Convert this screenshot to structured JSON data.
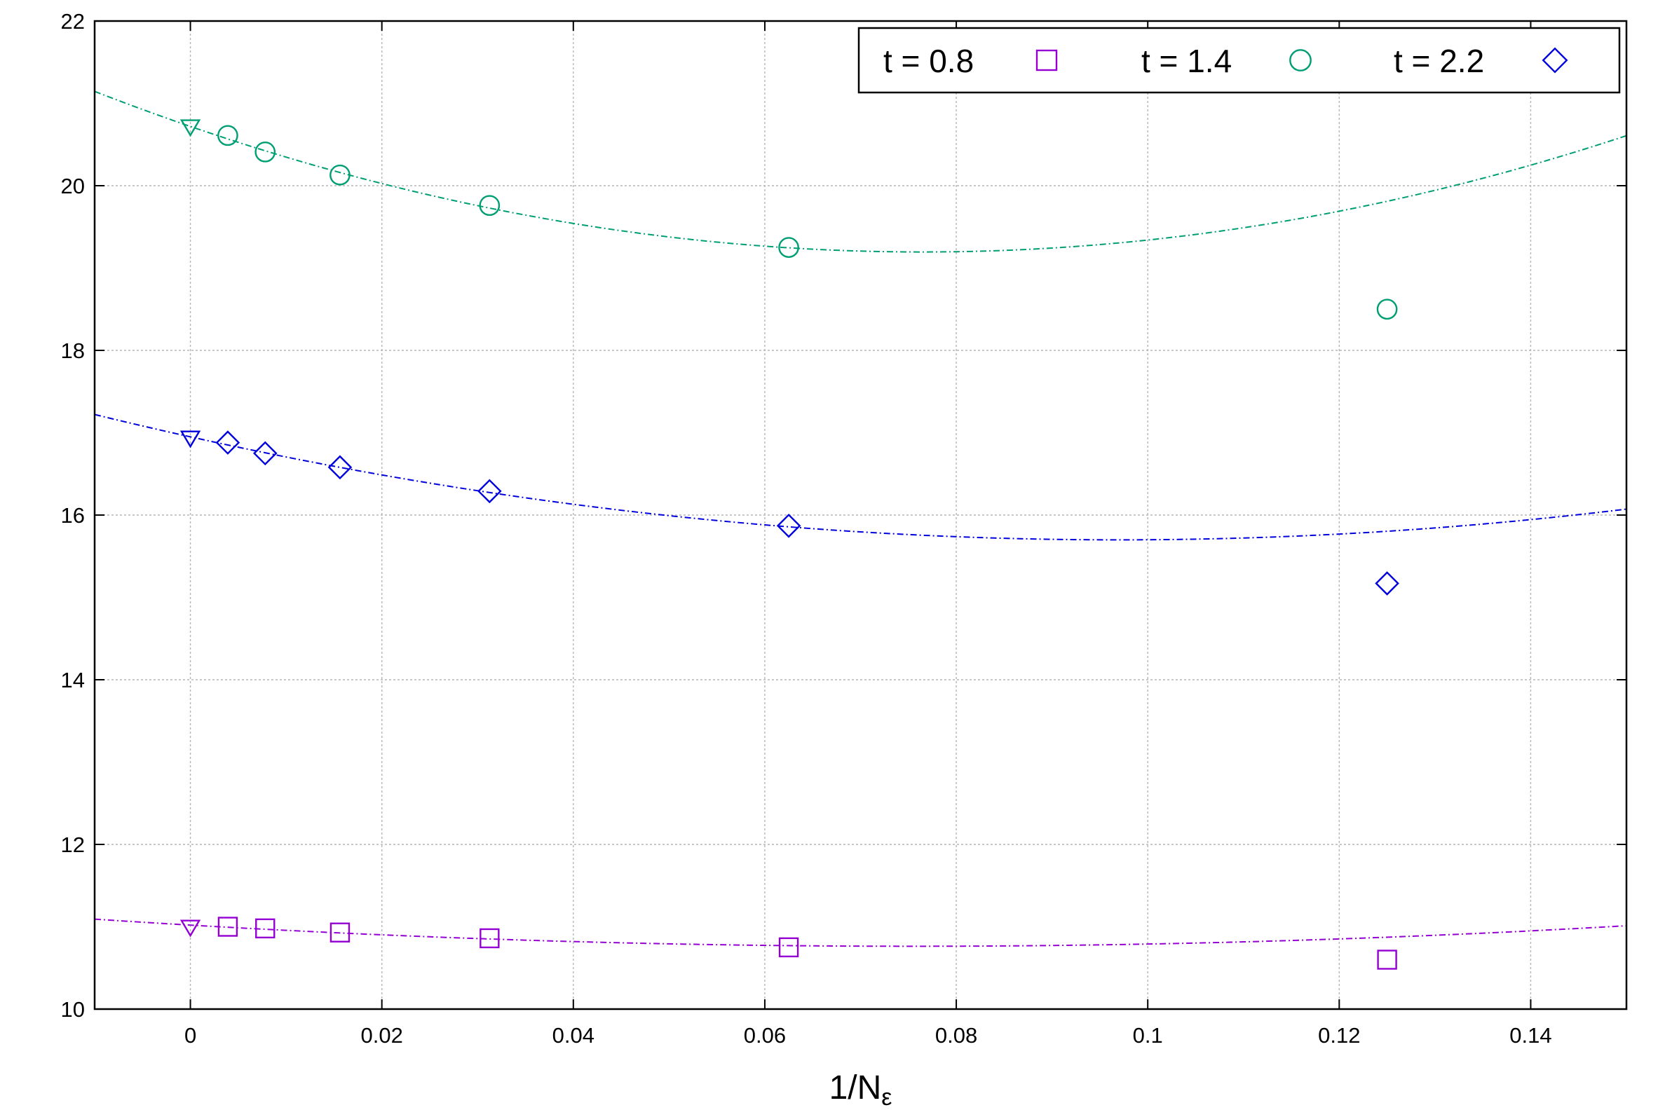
{
  "chart_data": {
    "type": "scatter",
    "title": "",
    "xlabel": "1/N",
    "xlabel_subscript": "ε",
    "ylabel": "",
    "xlim": [
      -0.01,
      0.15
    ],
    "ylim": [
      10,
      22
    ],
    "grid": true,
    "legend_position": "top-right",
    "x_ticks": [
      "0",
      "0.02",
      "0.04",
      "0.06",
      "0.08",
      "0.1",
      "0.12",
      "0.14"
    ],
    "y_ticks": [
      "10",
      "12",
      "14",
      "16",
      "18",
      "20",
      "22"
    ],
    "series": [
      {
        "name": "t = 0.8",
        "marker": "square",
        "color": "#9400D3",
        "x": [
          0.00390625,
          0.0078125,
          0.015625,
          0.03125,
          0.0625,
          0.125
        ],
        "y": [
          11.0,
          10.98,
          10.93,
          10.86,
          10.75,
          10.6
        ],
        "extrapolated": {
          "x": 0,
          "y": 11.0
        },
        "fit": {
          "a": 11.02,
          "b": -6.8,
          "c": 45
        }
      },
      {
        "name": "t = 1.4",
        "marker": "circle",
        "color": "#009E73",
        "x": [
          0.00390625,
          0.0078125,
          0.015625,
          0.03125,
          0.0625,
          0.125
        ],
        "y": [
          20.61,
          20.41,
          20.13,
          19.76,
          19.25,
          18.5
        ],
        "extrapolated": {
          "x": 0,
          "y": 20.72
        },
        "fit": {
          "a": 20.72,
          "b": -39.9,
          "c": 261
        }
      },
      {
        "name": "t = 2.2",
        "marker": "diamond",
        "color": "#0000DD",
        "x": [
          0.00390625,
          0.0078125,
          0.015625,
          0.03125,
          0.0625,
          0.125
        ],
        "y": [
          16.88,
          16.75,
          16.58,
          16.29,
          15.87,
          15.17
        ],
        "extrapolated": {
          "x": 0,
          "y": 16.94
        },
        "fit": {
          "a": 16.95,
          "b": -25.8,
          "c": 133
        }
      }
    ]
  }
}
